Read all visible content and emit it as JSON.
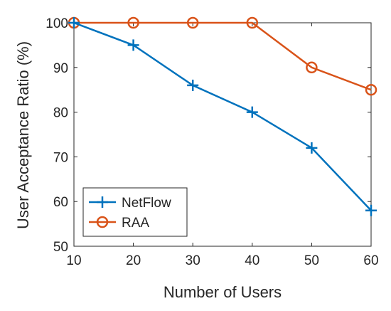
{
  "chart_data": {
    "type": "line",
    "title": "",
    "xlabel": "Number of Users",
    "ylabel": "User Acceptance Ratio (%)",
    "x": [
      10,
      20,
      30,
      40,
      50,
      60
    ],
    "xlim": [
      10,
      60
    ],
    "ylim": [
      50,
      100
    ],
    "xticks": [
      "10",
      "20",
      "30",
      "40",
      "50",
      "60"
    ],
    "yticks": [
      "50",
      "60",
      "70",
      "80",
      "90",
      "100"
    ],
    "grid": false,
    "legend_position": "bottom-left",
    "series": [
      {
        "name": "NetFlow",
        "values": [
          100,
          95,
          86,
          80,
          72,
          58
        ],
        "color": "#0072BD",
        "marker": "plus"
      },
      {
        "name": "RAA",
        "values": [
          100,
          100,
          100,
          100,
          90,
          85
        ],
        "color": "#D95319",
        "marker": "circle"
      }
    ]
  }
}
